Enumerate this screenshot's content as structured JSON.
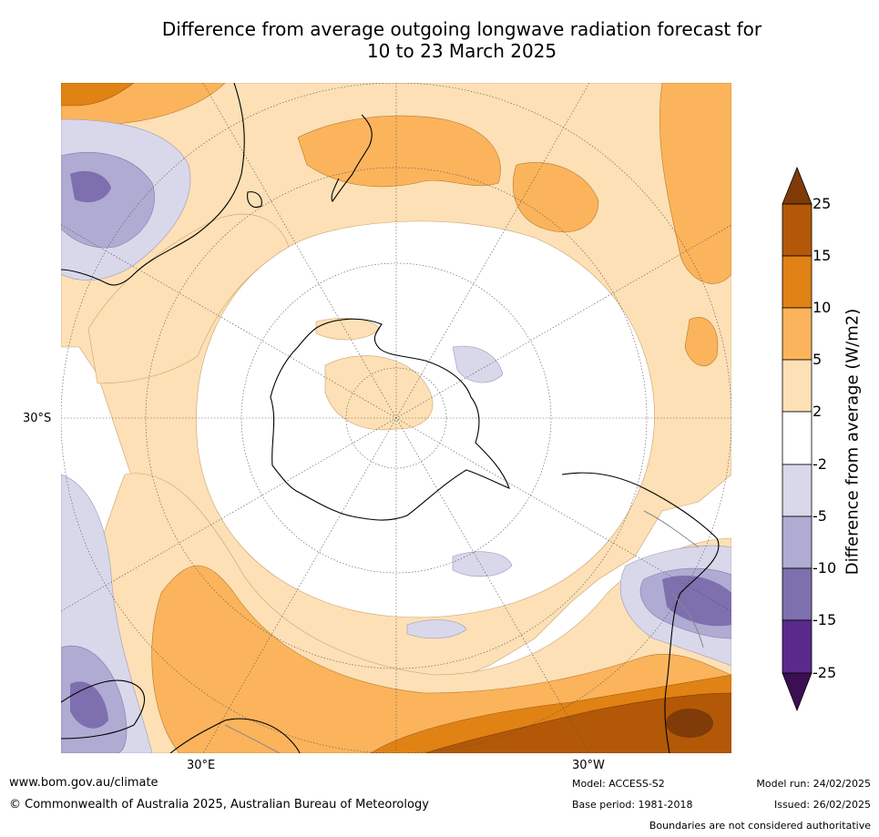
{
  "title_line1": "Difference from average outgoing longwave radiation forecast for",
  "title_line2": "10 to 23 March 2025",
  "map": {
    "lat_label": "30°S",
    "lon_labels": {
      "east": "30°E",
      "west": "30°W"
    },
    "colors": {
      "purple_dark": "#3b0f52",
      "purple_1": "#5a2a8a",
      "purple_2": "#7e6fae",
      "purple_3": "#b0abd2",
      "purple_4": "#d9d8ea",
      "white": "#ffffff",
      "orange_1": "#fde0b5",
      "orange_2": "#fbb45c",
      "orange_3": "#e08214",
      "orange_4": "#b35806",
      "orange_dark": "#7f3b08"
    }
  },
  "colorbar": {
    "title": "Difference from average (W/m2)",
    "ticks": [
      "25",
      "15",
      "10",
      "5",
      "2",
      "-2",
      "-5",
      "-10",
      "-15",
      "-25"
    ]
  },
  "footer": {
    "website": "www.bom.gov.au/climate",
    "copyright": "© Commonwealth of Australia 2025, Australian Bureau of Meteorology",
    "model": "Model: ACCESS-S2",
    "base_period": "Base period: 1981-2018",
    "model_run": "Model run: 24/02/2025",
    "issued": "Issued: 26/02/2025",
    "disclaimer": "Boundaries are not considered authoritative"
  }
}
